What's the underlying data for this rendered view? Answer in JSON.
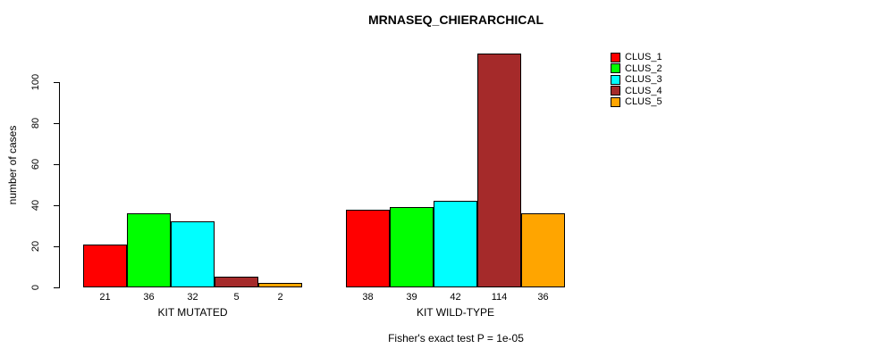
{
  "title": "MRNASEQ_CHIERARCHICAL",
  "subtitle": "Fisher's exact test P = 1e-05",
  "chart_data": {
    "type": "bar",
    "title": "MRNASEQ_CHIERARCHICAL",
    "xlabel": "",
    "ylabel": "number of cases",
    "annotation": "Fisher's exact test P = 1e-05",
    "categories": [
      "KIT MUTATED",
      "KIT WILD-TYPE"
    ],
    "series": [
      {
        "name": "CLUS_1",
        "color": "#ff0000",
        "values": [
          21,
          38
        ]
      },
      {
        "name": "CLUS_2",
        "color": "#00ff00",
        "values": [
          36,
          39
        ]
      },
      {
        "name": "CLUS_3",
        "color": "#00ffff",
        "values": [
          32,
          42
        ]
      },
      {
        "name": "CLUS_4",
        "color": "#a52a2a",
        "values": [
          5,
          114
        ]
      },
      {
        "name": "CLUS_5",
        "color": "#ffa500",
        "values": [
          2,
          36
        ]
      }
    ],
    "yticks": [
      0,
      20,
      40,
      60,
      80,
      100
    ],
    "ylim": [
      0,
      115
    ],
    "grid": false,
    "legend_position": "right",
    "legend_labels": [
      "CLUS_1",
      "CLUS_2",
      "CLUS_3",
      "CLUS_4",
      "CLUS_5"
    ]
  }
}
